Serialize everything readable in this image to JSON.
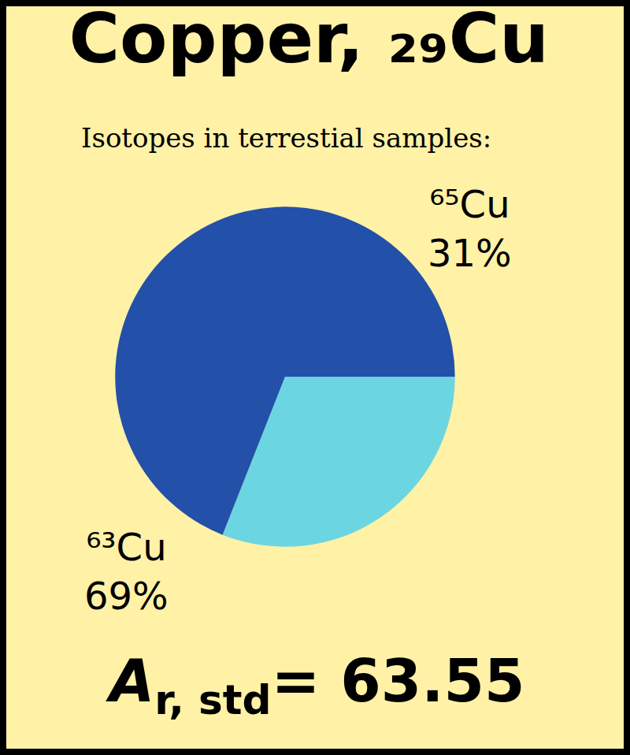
{
  "chart_data": {
    "type": "pie",
    "title": "Copper, ₂₉Cu",
    "subtitle": "Isotopes in terrestial samples:",
    "categories": [
      "⁶⁵Cu",
      "⁶³Cu"
    ],
    "values": [
      31,
      69
    ],
    "value_labels": [
      "31%",
      "69%"
    ],
    "colors": [
      "#6cd5e2",
      "#2350a8"
    ],
    "data_labels": true,
    "annotations": [
      {
        "text": "A",
        "subscript": "r, std",
        "suffix": "= 63.55"
      }
    ]
  }
}
